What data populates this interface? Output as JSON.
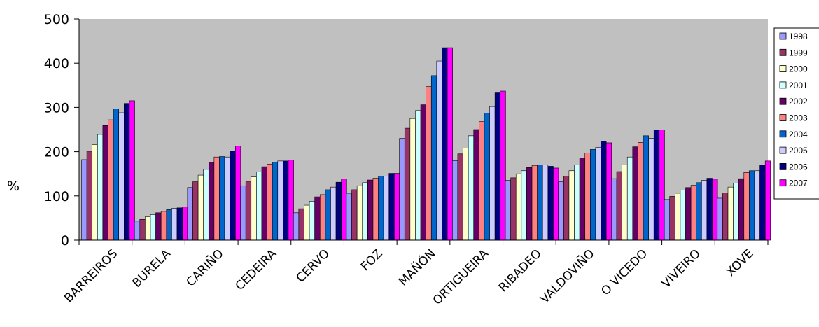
{
  "chart_data": {
    "type": "bar",
    "title": "",
    "xlabel": "",
    "ylabel": "%",
    "ylim": [
      0,
      500
    ],
    "yticks": [
      "0",
      "100",
      "200",
      "300",
      "400",
      "500"
    ],
    "grid": false,
    "legend_position": "right",
    "categories": [
      "BARREIROS",
      "BURELA",
      "CARIÑO",
      "CEDEIRA",
      "CERVO",
      "FOZ",
      "MAÑÓN",
      "ORTIGUEIRA",
      "RIBADEO",
      "VALDOVIÑO",
      "O VICEDO",
      "VIVEIRO",
      "XOVE"
    ],
    "series": [
      {
        "name": "1998",
        "color": "#9999ff",
        "values": [
          182,
          43,
          119,
          123,
          62,
          106,
          230,
          180,
          135,
          132,
          139,
          92,
          95
        ]
      },
      {
        "name": "1999",
        "color": "#993366",
        "values": [
          201,
          47,
          132,
          133,
          71,
          114,
          253,
          195,
          141,
          145,
          155,
          99,
          107
        ]
      },
      {
        "name": "2000",
        "color": "#ffffcc",
        "values": [
          216,
          53,
          147,
          143,
          79,
          123,
          275,
          208,
          150,
          157,
          170,
          106,
          120
        ]
      },
      {
        "name": "2001",
        "color": "#ccffff",
        "values": [
          239,
          58,
          160,
          154,
          88,
          130,
          293,
          236,
          157,
          170,
          188,
          113,
          129
        ]
      },
      {
        "name": "2002",
        "color": "#660066",
        "values": [
          259,
          62,
          176,
          166,
          98,
          136,
          306,
          250,
          164,
          186,
          211,
          119,
          139
        ]
      },
      {
        "name": "2003",
        "color": "#ff8080",
        "values": [
          272,
          65,
          188,
          172,
          103,
          140,
          347,
          268,
          169,
          197,
          221,
          124,
          153
        ]
      },
      {
        "name": "2004",
        "color": "#0066cc",
        "values": [
          297,
          69,
          189,
          176,
          114,
          145,
          372,
          287,
          170,
          205,
          236,
          130,
          157
        ]
      },
      {
        "name": "2005",
        "color": "#ccccff",
        "values": [
          288,
          72,
          188,
          179,
          120,
          145,
          405,
          302,
          170,
          210,
          230,
          135,
          157
        ]
      },
      {
        "name": "2006",
        "color": "#000080",
        "values": [
          309,
          73,
          202,
          179,
          131,
          151,
          435,
          333,
          167,
          224,
          249,
          140,
          170
        ]
      },
      {
        "name": "2007",
        "color": "#ff00ff",
        "values": [
          315,
          75,
          213,
          181,
          138,
          151,
          435,
          337,
          163,
          220,
          249,
          138,
          179
        ]
      }
    ]
  }
}
